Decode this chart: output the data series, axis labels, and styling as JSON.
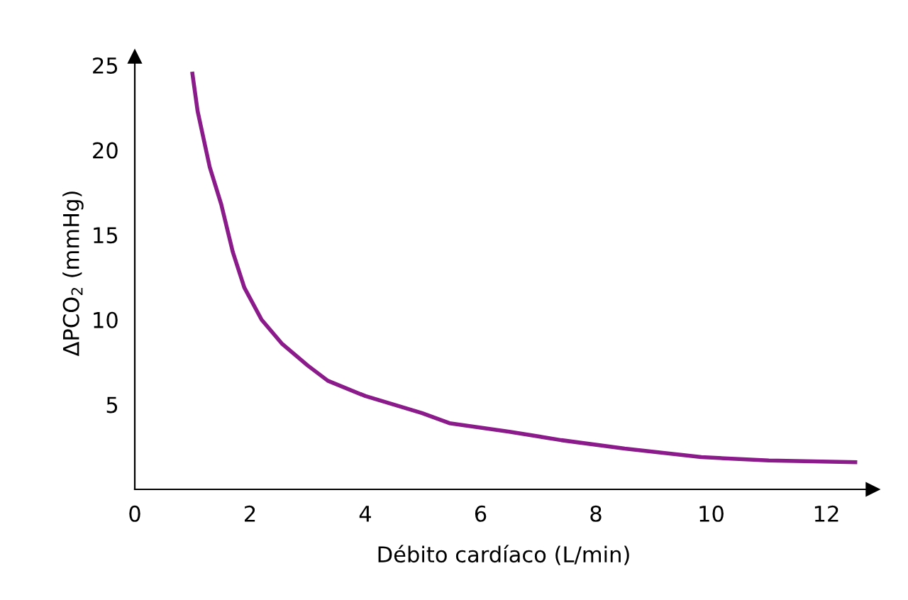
{
  "chart_data": {
    "type": "line",
    "xlabel": "Débito cardíaco (L/min)",
    "ylabel": "ΔPCO$_{2}$ (mmHg)",
    "series": [
      {
        "color": "#8b1a8b",
        "x": [
          1.0,
          1.09,
          1.3,
          1.5,
          1.7,
          1.9,
          2.2,
          2.55,
          3.0,
          3.35,
          4.0,
          4.98,
          5.46,
          6.5,
          7.4,
          8.5,
          9.83,
          11.0,
          12.5
        ],
        "values": [
          24.5,
          22.3,
          19.0,
          16.8,
          14.0,
          11.9,
          10.0,
          8.6,
          7.3,
          6.4,
          5.5,
          4.5,
          3.9,
          3.4,
          2.9,
          2.4,
          1.9,
          1.7,
          1.6
        ]
      }
    ],
    "xlim": [
      0,
      12.8
    ],
    "ylim": [
      0,
      25.5
    ],
    "xticks": [
      0,
      2,
      4,
      6,
      8,
      10,
      12
    ],
    "yticks": [
      5,
      10,
      15,
      20,
      25
    ],
    "grid": false,
    "legend": false,
    "marker": "none",
    "line_style": "solid"
  }
}
